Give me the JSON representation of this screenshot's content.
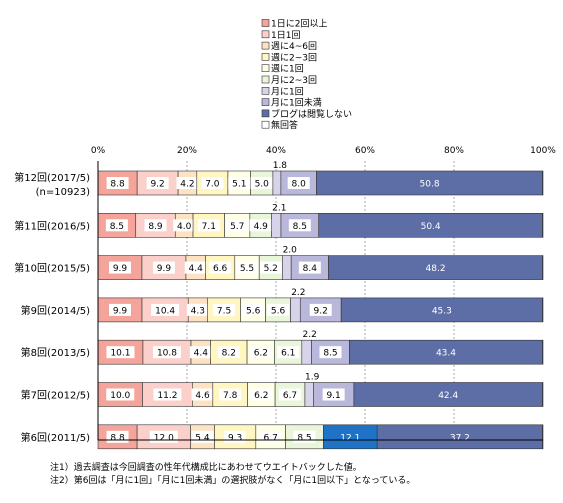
{
  "chart_data": {
    "type": "bar",
    "orientation": "horizontal",
    "stacked": true,
    "xlim": [
      0,
      100
    ],
    "x_ticks": [
      "0%",
      "20%",
      "40%",
      "60%",
      "80%",
      "100%"
    ],
    "legend_placement": "top",
    "grid": true,
    "categories": [
      [
        "第12回(2017/5)",
        "(n=10923)"
      ],
      [
        "第11回(2016/5)"
      ],
      [
        "第10回(2015/5)"
      ],
      [
        "第9回(2014/5)"
      ],
      [
        "第8回(2013/5)"
      ],
      [
        "第7回(2012/5)"
      ],
      [
        "第6回(2011/5)"
      ]
    ],
    "series": [
      {
        "name": "1日に2回以上",
        "color": "#f4a49a",
        "values": [
          8.8,
          8.5,
          9.9,
          9.9,
          10.1,
          10.0,
          8.8
        ]
      },
      {
        "name": "1日1回",
        "color": "#fbd0cb",
        "values": [
          9.2,
          8.9,
          9.9,
          10.4,
          10.8,
          11.2,
          12.0
        ]
      },
      {
        "name": "週に4~6回",
        "color": "#fde3c4",
        "values": [
          4.2,
          4.0,
          4.4,
          4.3,
          4.4,
          4.6,
          5.4
        ]
      },
      {
        "name": "週に2~3回",
        "color": "#fff6c2",
        "values": [
          7.0,
          7.1,
          6.6,
          7.5,
          8.2,
          7.8,
          9.3
        ]
      },
      {
        "name": "週に1回",
        "color": "#ffffe6",
        "values": [
          5.1,
          5.7,
          5.5,
          5.6,
          6.2,
          6.2,
          6.7
        ]
      },
      {
        "name": "月に2~3回",
        "color": "#eaf6da",
        "values": [
          5.0,
          4.9,
          5.2,
          5.6,
          6.1,
          6.7,
          8.5
        ]
      },
      {
        "name": "月に1回",
        "color": "#d7d3ea",
        "values": [
          1.8,
          2.1,
          2.0,
          2.2,
          2.2,
          1.9,
          null
        ]
      },
      {
        "name": "月に1回未満",
        "color": "#b9b8db",
        "values": [
          8.0,
          8.5,
          8.4,
          9.2,
          8.5,
          9.1,
          null
        ]
      },
      {
        "name": "ブログは閲覧しない",
        "color": "#5c6ea5",
        "values": [
          50.8,
          50.4,
          48.2,
          45.3,
          43.4,
          42.4,
          37.2
        ]
      },
      {
        "name": "無回答",
        "color": "#ffffff",
        "values": [
          0.1,
          0.1,
          0.1,
          0.1,
          0.1,
          0.1,
          0.1
        ]
      }
    ],
    "extra_segments": [
      {
        "row": 6,
        "after_series": 5,
        "value": 12.1,
        "color": "#1e73c7"
      }
    ],
    "label_texts": [
      [
        "8.8",
        "9.2",
        "4.2",
        "7.0",
        "5.1",
        "5.0",
        "1.8",
        "8.0",
        "50.8",
        ""
      ],
      [
        "8.5",
        "8.9",
        "4.0",
        "7.1",
        "5.7",
        "4.9",
        "2.1",
        "8.5",
        "50.4",
        ""
      ],
      [
        "9.9",
        "9.9",
        "4.4",
        "6.6",
        "5.5",
        "5.2",
        "2.0",
        "8.4",
        "48.2",
        ""
      ],
      [
        "9.9",
        "10.4",
        "4.3",
        "7.5",
        "5.6",
        "5.6",
        "2.2",
        "9.2",
        "45.3",
        ""
      ],
      [
        "10.1",
        "10.8",
        "4.4",
        "8.2",
        "6.2",
        "6.1",
        "2.2",
        "8.5",
        "43.4",
        ""
      ],
      [
        "10.0",
        "11.2",
        "4.6",
        "7.8",
        "6.2",
        "6.7",
        "1.9",
        "9.1",
        "42.4",
        ""
      ],
      [
        "8.8",
        "12.0",
        "5.4",
        "9.3",
        "6.7",
        "8.5",
        "",
        "",
        "37.2",
        ""
      ]
    ],
    "extra_label_texts": [
      "12.1"
    ],
    "above_label_series": 6
  },
  "notes": [
    "注1）過去調査は今回調査の性年代構成比にあわせてウエイトバックした値。",
    "注2）第6回は「月に1回」「月に1回未満」の選択肢がなく「月に1回以下」となっている。"
  ]
}
